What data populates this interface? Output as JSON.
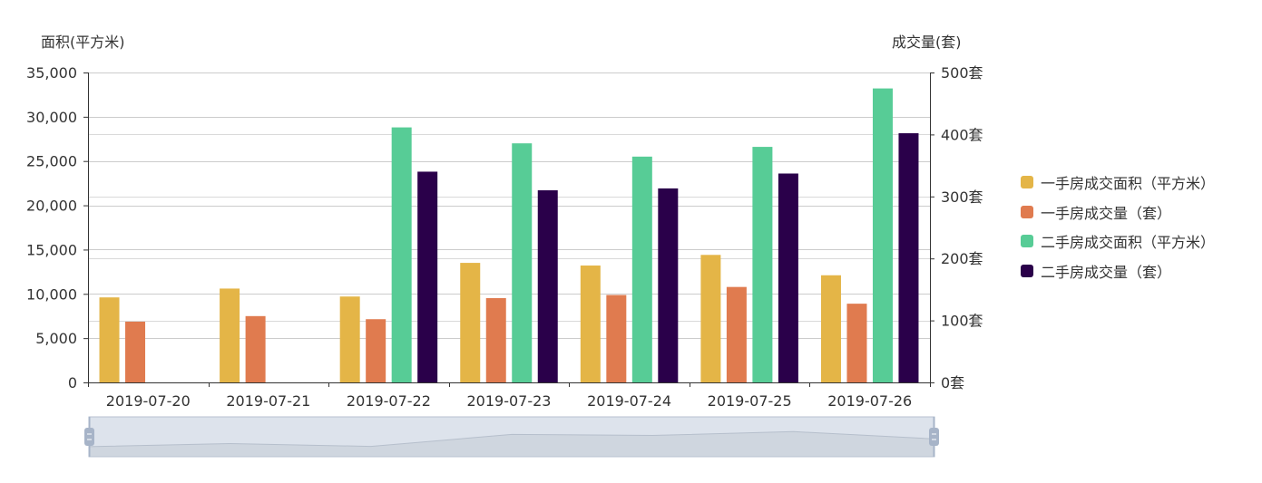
{
  "chart_data": {
    "type": "bar",
    "categories": [
      "2019-07-20",
      "2019-07-21",
      "2019-07-22",
      "2019-07-23",
      "2019-07-24",
      "2019-07-25",
      "2019-07-26"
    ],
    "y_left": {
      "name": "面积(平方米)",
      "min": 0,
      "max": 35000,
      "ticks": [
        "0",
        "5,000",
        "10,000",
        "15,000",
        "20,000",
        "25,000",
        "30,000",
        "35,000"
      ]
    },
    "y_right": {
      "name": "成交量(套)",
      "min": 0,
      "max": 500,
      "ticks": [
        "0套",
        "100套",
        "200套",
        "300套",
        "400套",
        "500套"
      ]
    },
    "series": [
      {
        "name": "一手房成交面积（平方米）",
        "axis": "left",
        "color": "#e4b547",
        "values": [
          9600,
          10600,
          9700,
          13500,
          13200,
          14400,
          12100
        ]
      },
      {
        "name": "一手房成交量（套）",
        "axis": "right",
        "color": "#e07b4f",
        "values": [
          98,
          107,
          102,
          136,
          141,
          154,
          127
        ]
      },
      {
        "name": "二手房成交面积（平方米）",
        "axis": "left",
        "color": "#57cc96",
        "values": [
          null,
          null,
          28800,
          27000,
          25500,
          26600,
          33200
        ]
      },
      {
        "name": "二手房成交量（套）",
        "axis": "right",
        "color": "#2a004a",
        "values": [
          null,
          null,
          340,
          310,
          313,
          337,
          402
        ]
      }
    ],
    "legend_position": "right",
    "grid": true,
    "data_zoom": {
      "start_percent": 0,
      "end_percent": 100
    }
  }
}
